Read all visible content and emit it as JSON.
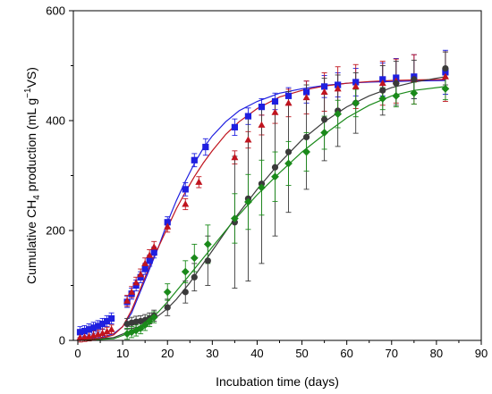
{
  "chart_data": {
    "type": "scatter",
    "xlabel": "Incubation time (days)",
    "ylabel": {
      "before_sub": "Cumulative CH",
      "sub": "4",
      "middle": " production (mL g",
      "sup": "−1",
      "after": "VS)"
    },
    "xlim": [
      -1,
      90
    ],
    "ylim": [
      0,
      600
    ],
    "xticks": [
      0,
      10,
      20,
      30,
      40,
      50,
      60,
      70,
      80,
      90
    ],
    "yticks": [
      0,
      200,
      400,
      600
    ],
    "grid": false,
    "series": [
      {
        "marker": "square",
        "color": "#1f1fe0",
        "x": [
          0.5,
          1.5,
          2.5,
          3.5,
          4.5,
          5.5,
          6.5,
          7.5,
          11,
          12,
          13,
          14,
          15,
          16,
          17,
          20,
          24,
          26,
          28.5,
          35,
          38,
          41,
          44,
          47,
          51,
          55,
          58,
          62,
          68,
          71,
          75,
          82
        ],
        "y": [
          15,
          17,
          20,
          23,
          26,
          30,
          35,
          40,
          70,
          85,
          100,
          115,
          130,
          145,
          160,
          215,
          275,
          328,
          352,
          388,
          408,
          425,
          435,
          445,
          452,
          462,
          465,
          470,
          475,
          478,
          480,
          488
        ],
        "err": [
          10,
          10,
          10,
          10,
          10,
          10,
          10,
          10,
          10,
          10,
          10,
          10,
          10,
          10,
          10,
          10,
          12,
          12,
          15,
          15,
          15,
          15,
          15,
          15,
          20,
          20,
          22,
          25,
          30,
          35,
          40,
          40
        ],
        "fit_x": [
          0,
          5,
          8,
          10,
          12,
          14,
          16,
          18,
          20,
          22,
          24,
          26,
          28,
          30,
          33,
          36,
          40,
          45,
          50,
          55,
          60,
          65,
          70,
          75,
          82
        ],
        "fit_y": [
          0,
          5,
          12,
          25,
          50,
          90,
          130,
          170,
          215,
          255,
          290,
          322,
          350,
          372,
          398,
          418,
          435,
          450,
          458,
          464,
          468,
          470,
          471,
          472,
          473
        ]
      },
      {
        "marker": "triangle",
        "color": "#c0141e",
        "x": [
          0.5,
          1.5,
          2.5,
          3.5,
          4.5,
          5.5,
          6.5,
          7.5,
          11,
          12,
          13,
          14,
          15,
          16,
          17,
          20,
          24,
          27,
          35,
          38,
          41,
          44,
          47,
          51,
          55,
          58,
          62,
          68,
          71,
          75,
          82
        ],
        "y": [
          5,
          6,
          7,
          9,
          11,
          13,
          16,
          20,
          72,
          88,
          105,
          120,
          140,
          155,
          170,
          207,
          248,
          288,
          333,
          365,
          392,
          415,
          432,
          442,
          452,
          458,
          462,
          468,
          472,
          475,
          480
        ],
        "err": [
          8,
          8,
          8,
          8,
          8,
          8,
          8,
          8,
          10,
          10,
          10,
          10,
          10,
          10,
          10,
          10,
          10,
          10,
          12,
          15,
          18,
          20,
          25,
          30,
          35,
          40,
          40,
          40,
          40,
          45,
          45
        ],
        "fit_x": [
          0,
          5,
          8,
          10,
          12,
          14,
          16,
          18,
          20,
          22,
          24,
          26,
          28,
          30,
          33,
          36,
          40,
          45,
          50,
          55,
          60,
          65,
          70,
          75,
          82
        ],
        "fit_y": [
          0,
          3,
          10,
          25,
          55,
          95,
          135,
          170,
          205,
          240,
          270,
          298,
          323,
          345,
          375,
          398,
          422,
          443,
          455,
          463,
          468,
          471,
          473,
          474,
          475
        ]
      },
      {
        "marker": "circle",
        "color": "#3a3a3a",
        "x": [
          11,
          12,
          13,
          14,
          15,
          16,
          17,
          20,
          24,
          26,
          29,
          35,
          38,
          41,
          44,
          47,
          51,
          55,
          58,
          62,
          68,
          71,
          75,
          82
        ],
        "y": [
          30,
          32,
          34,
          35,
          37,
          40,
          45,
          60,
          88,
          115,
          145,
          215,
          258,
          285,
          315,
          343,
          370,
          402,
          418,
          432,
          455,
          468,
          475,
          495
        ],
        "err": [
          10,
          10,
          10,
          10,
          10,
          10,
          10,
          15,
          20,
          25,
          45,
          120,
          150,
          145,
          125,
          110,
          95,
          75,
          65,
          55,
          45,
          40,
          35,
          30
        ],
        "fit_x": [
          0,
          8,
          12,
          15,
          18,
          20,
          22,
          25,
          28,
          31,
          35,
          40,
          45,
          50,
          55,
          60,
          65,
          70,
          75,
          82
        ],
        "fit_y": [
          0,
          5,
          18,
          30,
          45,
          58,
          75,
          105,
          140,
          175,
          222,
          275,
          323,
          365,
          398,
          425,
          445,
          460,
          470,
          480
        ]
      },
      {
        "marker": "diamond",
        "color": "#1a8a1a",
        "x": [
          11,
          12,
          13,
          14,
          15,
          16,
          17,
          20,
          24,
          26,
          29,
          35,
          38,
          41,
          44,
          47,
          51,
          55,
          58,
          62,
          68,
          71,
          75,
          82
        ],
        "y": [
          12,
          15,
          18,
          22,
          28,
          35,
          42,
          88,
          125,
          150,
          175,
          222,
          252,
          278,
          298,
          322,
          343,
          378,
          412,
          432,
          440,
          445,
          450,
          458
        ],
        "err": [
          10,
          10,
          10,
          10,
          10,
          10,
          10,
          15,
          20,
          25,
          35,
          45,
          50,
          50,
          45,
          40,
          35,
          30,
          25,
          25,
          20,
          20,
          20,
          20
        ],
        "fit_x": [
          0,
          8,
          12,
          15,
          18,
          20,
          22,
          25,
          28,
          31,
          35,
          40,
          45,
          50,
          55,
          60,
          65,
          70,
          75,
          82
        ],
        "fit_y": [
          0,
          3,
          15,
          30,
          52,
          70,
          90,
          120,
          150,
          180,
          220,
          265,
          305,
          343,
          375,
          405,
          428,
          445,
          455,
          462
        ]
      }
    ]
  }
}
